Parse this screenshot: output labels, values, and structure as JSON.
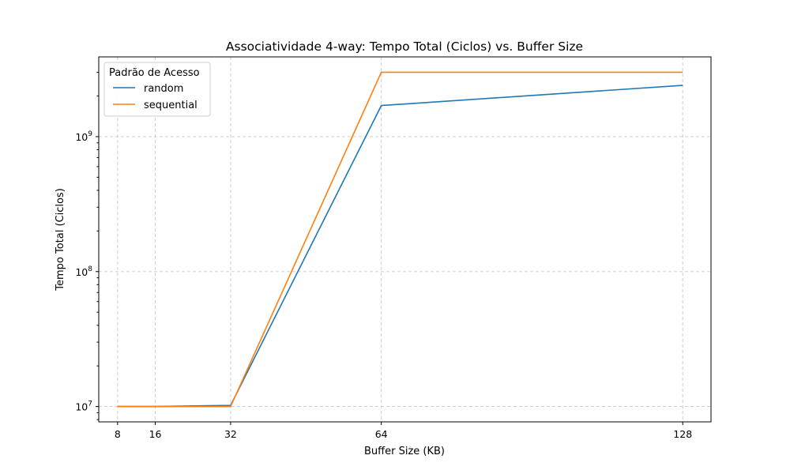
{
  "chart_data": {
    "type": "line",
    "title": "Associatividade 4-way: Tempo Total (Ciclos) vs. Buffer Size",
    "xlabel": "Buffer Size (KB)",
    "ylabel": "Tempo Total (Ciclos)",
    "x": [
      8,
      16,
      32,
      64,
      128
    ],
    "x_ticks": [
      "8",
      "16",
      "32",
      "64",
      "128"
    ],
    "xlim": [
      4,
      134
    ],
    "ylim": [
      7700000.0,
      3900000000.0
    ],
    "y_scale": "log",
    "y_ticks": [
      {
        "value": 10000000.0,
        "base": "10",
        "exp": "7"
      },
      {
        "value": 100000000.0,
        "base": "10",
        "exp": "8"
      },
      {
        "value": 1000000000.0,
        "base": "10",
        "exp": "9"
      }
    ],
    "grid": true,
    "legend": {
      "title": "Padrão de Acesso",
      "placement": "upper-left"
    },
    "series": [
      {
        "name": "random",
        "color": "#1f77b4",
        "values": [
          10000000.0,
          10000000.0,
          10200000.0,
          1700000000.0,
          2400000000.0
        ]
      },
      {
        "name": "sequential",
        "color": "#ff7f0e",
        "values": [
          10000000.0,
          10000000.0,
          10000000.0,
          3000000000.0,
          3000000000.0
        ]
      }
    ]
  }
}
